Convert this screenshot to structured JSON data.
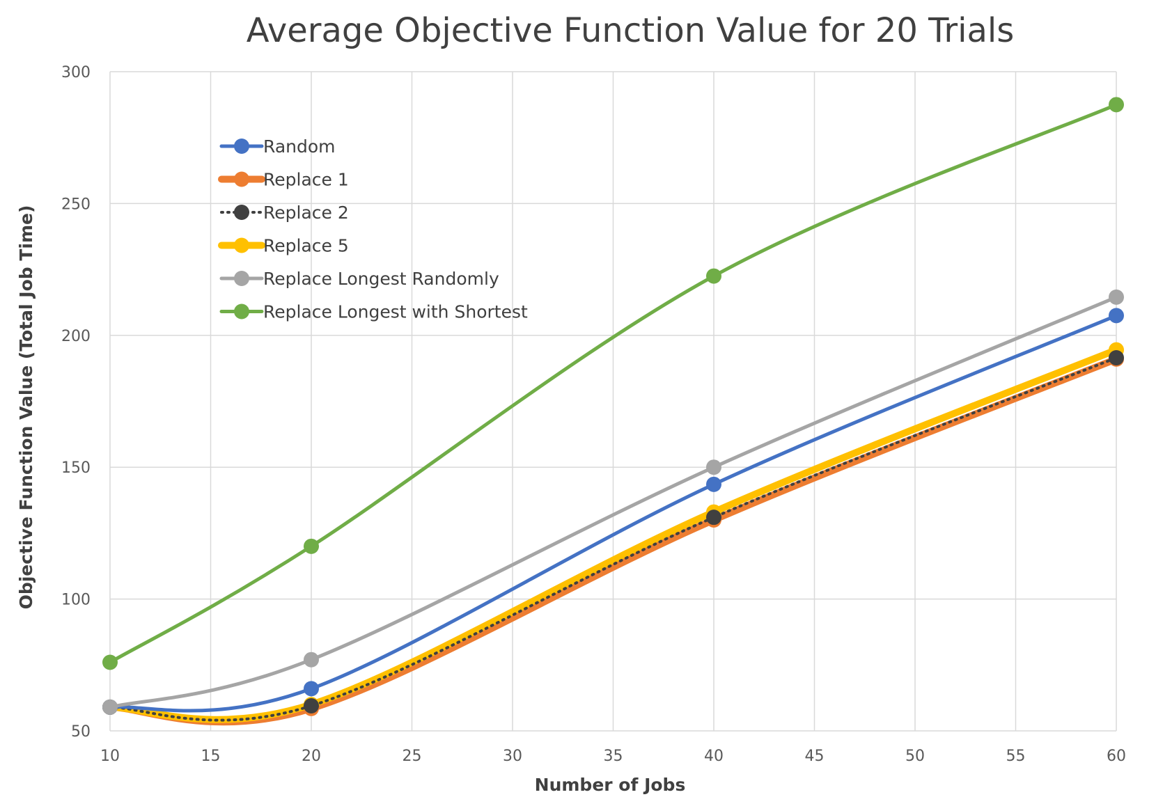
{
  "chart_data": {
    "type": "line",
    "title": "Average Objective Function Value for 20 Trials",
    "xlabel": "Number of Jobs",
    "ylabel": "Objective Function Value (Total Job Time)",
    "xlim": [
      10,
      60
    ],
    "ylim": [
      50,
      300
    ],
    "xticks": [
      10,
      15,
      20,
      25,
      30,
      35,
      40,
      45,
      50,
      55,
      60
    ],
    "yticks": [
      50,
      100,
      150,
      200,
      250,
      300
    ],
    "grid": true,
    "legend_position": "top-left",
    "x": [
      10,
      20,
      40,
      60
    ],
    "series": [
      {
        "name": "Random",
        "values": [
          59,
          66,
          143.5,
          207.5
        ],
        "color": "#4472c4",
        "style": "solid",
        "marker": "circle"
      },
      {
        "name": "Replace 1",
        "values": [
          59,
          58.5,
          130,
          191
        ],
        "color": "#ed7d31",
        "style": "thick",
        "marker": "circle"
      },
      {
        "name": "Replace 2",
        "values": [
          59,
          59.5,
          131,
          191.5
        ],
        "color": "#404040",
        "style": "dotted",
        "marker": "circle"
      },
      {
        "name": "Replace 5",
        "values": [
          59,
          60,
          133,
          194.5
        ],
        "color": "#ffc000",
        "style": "thick",
        "marker": "circle"
      },
      {
        "name": "Replace Longest Randomly",
        "values": [
          59,
          77,
          150,
          214.5
        ],
        "color": "#a5a5a5",
        "style": "solid",
        "marker": "circle"
      },
      {
        "name": "Replace Longest with Shortest",
        "values": [
          76,
          120,
          222.5,
          287.5
        ],
        "color": "#70ad47",
        "style": "solid",
        "marker": "circle"
      }
    ]
  }
}
